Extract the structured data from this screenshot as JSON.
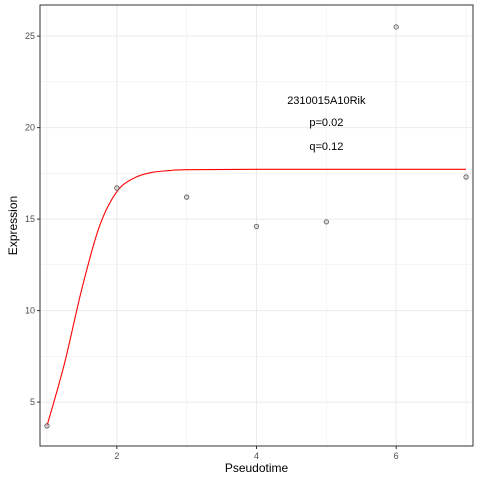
{
  "chart_data": {
    "type": "scatter",
    "xlabel": "Pseudotime",
    "ylabel": "Expression",
    "xlim": [
      0.9,
      7.1
    ],
    "ylim": [
      2.6,
      26.7
    ],
    "x_ticks": [
      2,
      4,
      6
    ],
    "y_ticks": [
      5,
      10,
      15,
      20,
      25
    ],
    "grid": true,
    "points": [
      {
        "x": 1,
        "y": 3.7
      },
      {
        "x": 2,
        "y": 16.7
      },
      {
        "x": 3,
        "y": 16.2
      },
      {
        "x": 4,
        "y": 14.6
      },
      {
        "x": 5,
        "y": 14.85
      },
      {
        "x": 6,
        "y": 25.5
      },
      {
        "x": 7,
        "y": 17.3
      }
    ],
    "fit_curve": {
      "color": "#ff0000",
      "points": [
        [
          1.0,
          3.7
        ],
        [
          1.25,
          7.1
        ],
        [
          1.5,
          11.2
        ],
        [
          1.75,
          14.6
        ],
        [
          2.0,
          16.5
        ],
        [
          2.25,
          17.25
        ],
        [
          2.5,
          17.55
        ],
        [
          2.75,
          17.65
        ],
        [
          3.0,
          17.7
        ],
        [
          4.0,
          17.72
        ],
        [
          5.0,
          17.72
        ],
        [
          6.0,
          17.72
        ],
        [
          7.0,
          17.72
        ]
      ]
    },
    "annotations": [
      "2310015A10Rik",
      "p=0.02",
      "q=0.12"
    ],
    "colors": {
      "point_stroke": "#555555",
      "point_fill": "#c8c8c8",
      "grid": "#ebebeb",
      "panel_border": "#333333"
    }
  }
}
